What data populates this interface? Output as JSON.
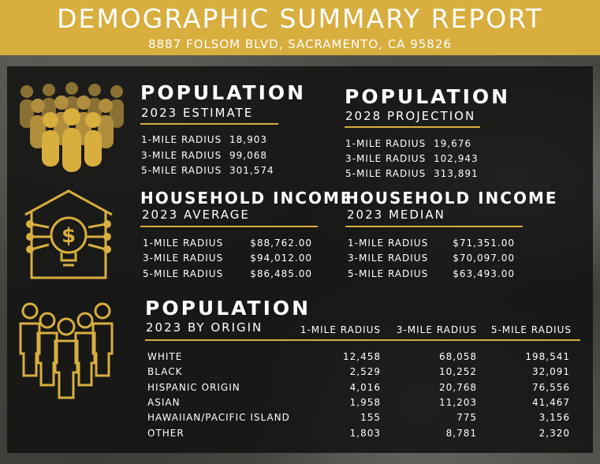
{
  "header": {
    "title": "DEMOGRAPHIC SUMMARY REPORT",
    "address": "8887 FOLSOM BLVD, SACRAMENTO, CA 95826"
  },
  "population_estimate": {
    "heading": "POPULATION",
    "subheading": "2023 ESTIMATE",
    "rows": [
      {
        "label": "1-MILE RADIUS",
        "value": "18,903"
      },
      {
        "label": "3-MILE RADIUS",
        "value": "99,068"
      },
      {
        "label": "5-MILE RADIUS",
        "value": "301,574"
      }
    ]
  },
  "population_projection": {
    "heading": "POPULATION",
    "subheading": "2028 PROJECTION",
    "rows": [
      {
        "label": "1-MILE RADIUS",
        "value": "19,676"
      },
      {
        "label": "3-MILE RADIUS",
        "value": "102,943"
      },
      {
        "label": "5-MILE RADIUS",
        "value": "313,891"
      }
    ]
  },
  "income_average": {
    "heading": "HOUSEHOLD INCOME",
    "subheading": "2023 AVERAGE",
    "rows": [
      {
        "label": "1-MILE RADIUS",
        "value": "$88,762.00"
      },
      {
        "label": "3-MILE RADIUS",
        "value": "$94,012.00"
      },
      {
        "label": "5-MILE RADIUS",
        "value": "$86,485.00"
      }
    ]
  },
  "income_median": {
    "heading": "HOUSEHOLD INCOME",
    "subheading": "2023 MEDIAN",
    "rows": [
      {
        "label": "1-MILE RADIUS",
        "value": "$71,351.00"
      },
      {
        "label": "3-MILE RADIUS",
        "value": "$70,097.00"
      },
      {
        "label": "5-MILE RADIUS",
        "value": "$63,493.00"
      }
    ]
  },
  "origin": {
    "heading": "POPULATION",
    "subheading": "2023 BY ORIGIN",
    "columns": [
      "1-MILE RADIUS",
      "3-MILE RADIUS",
      "5-MILE RADIUS"
    ],
    "rows": [
      {
        "label": "WHITE",
        "c1": "12,458",
        "c2": "68,058",
        "c3": "198,541"
      },
      {
        "label": "BLACK",
        "c1": "2,529",
        "c2": "10,252",
        "c3": "32,091"
      },
      {
        "label": "HISPANIC ORIGIN",
        "c1": "4,016",
        "c2": "20,768",
        "c3": "76,556"
      },
      {
        "label": "ASIAN",
        "c1": "1,958",
        "c2": "11,203",
        "c3": "41,467"
      },
      {
        "label": "HAWAIIAN/PACIFIC ISLAND",
        "c1": "155",
        "c2": "775",
        "c3": "3,156"
      },
      {
        "label": "OTHER",
        "c1": "1,803",
        "c2": "8,781",
        "c3": "2,320"
      }
    ]
  },
  "colors": {
    "accent": "#d8ae3f",
    "panel": "#121212"
  }
}
